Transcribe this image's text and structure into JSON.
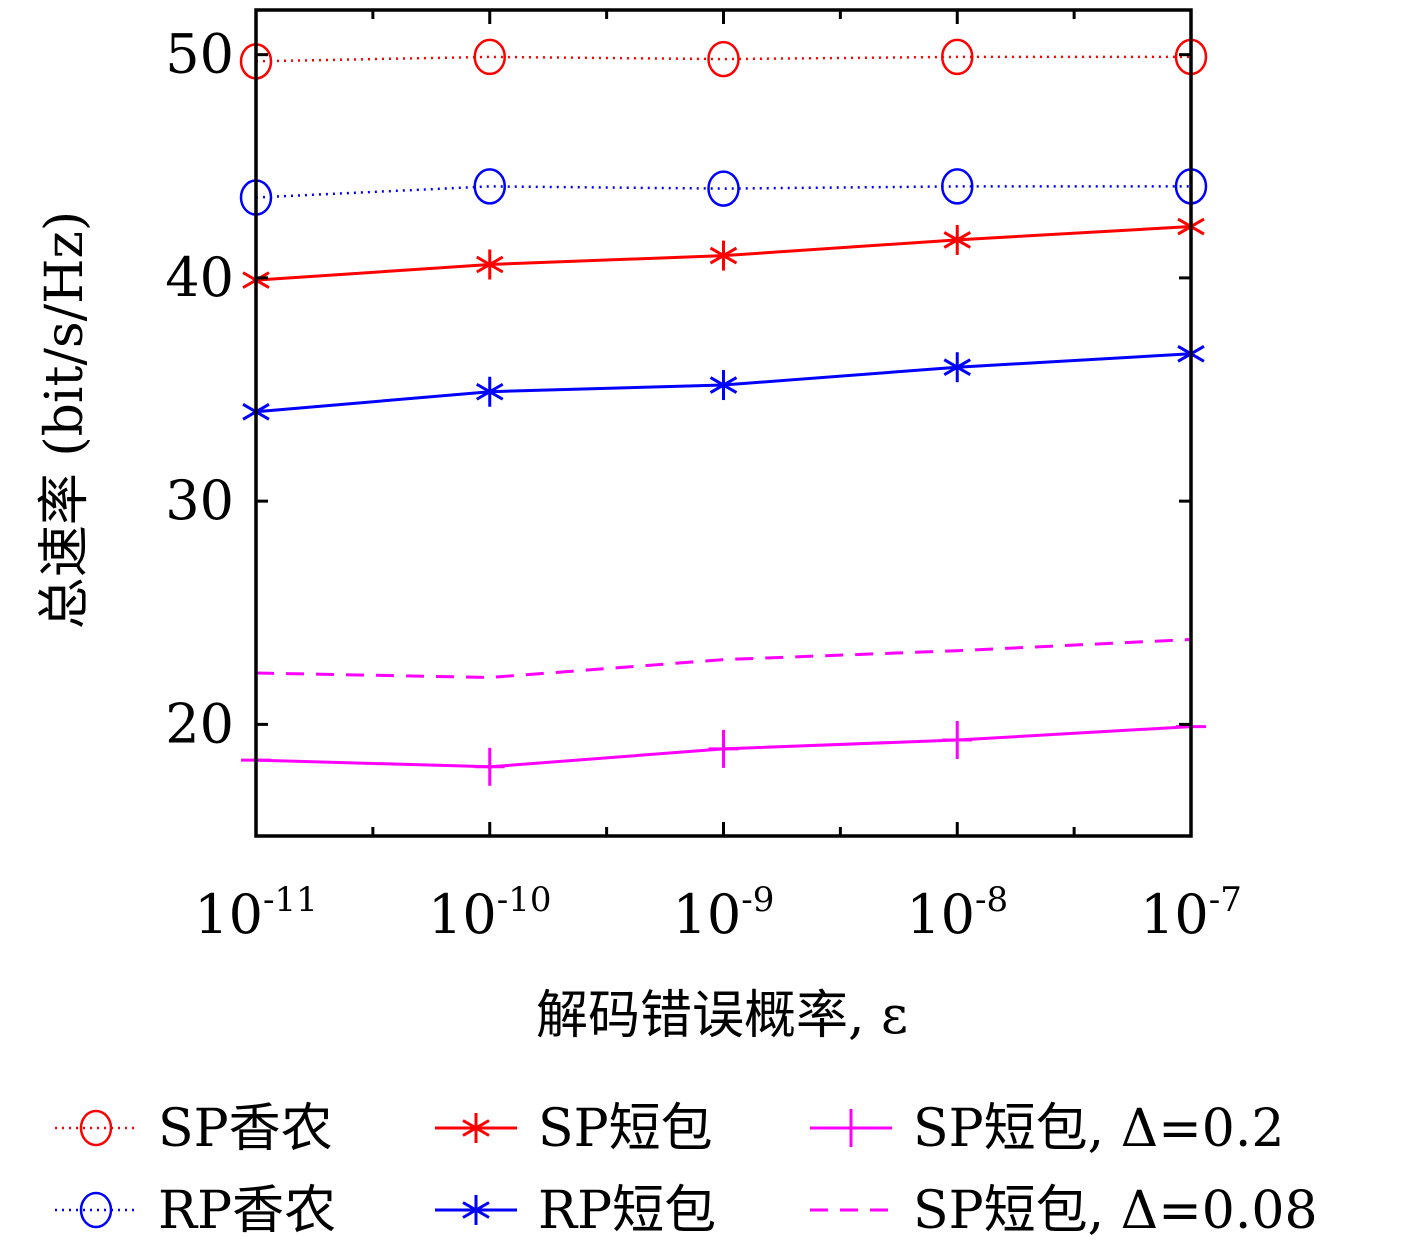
{
  "chart_data": {
    "type": "line",
    "title": "",
    "xlabel": "解码错误概率, ε",
    "ylabel": "总速率 (bit/s/Hz)",
    "x_scale": "log",
    "x": [
      1e-11,
      1e-10,
      1e-09,
      1e-08,
      1e-07
    ],
    "x_tick_labels": [
      {
        "base": "10",
        "exp": "-11"
      },
      {
        "base": "10",
        "exp": "-10"
      },
      {
        "base": "10",
        "exp": "-9"
      },
      {
        "base": "10",
        "exp": "-8"
      },
      {
        "base": "10",
        "exp": "-7"
      }
    ],
    "ylim": [
      15,
      52
    ],
    "y_ticks": [
      20,
      30,
      40,
      50
    ],
    "y_tick_labels": [
      "20",
      "30",
      "40",
      "50"
    ],
    "grid": false,
    "legend_position": "below",
    "series": [
      {
        "name": "SP香农",
        "color": "#ff0000",
        "line": "dotted",
        "marker": "circle",
        "values": [
          49.7,
          49.9,
          49.8,
          49.9,
          49.9
        ]
      },
      {
        "name": "RP香农",
        "color": "#0000ff",
        "line": "dotted",
        "marker": "circle",
        "values": [
          43.6,
          44.1,
          44.0,
          44.1,
          44.1
        ]
      },
      {
        "name": "SP短包",
        "color": "#ff0000",
        "line": "solid",
        "marker": "asterisk",
        "values": [
          39.9,
          40.6,
          41.0,
          41.7,
          42.3
        ]
      },
      {
        "name": "RP短包",
        "color": "#0000ff",
        "line": "solid",
        "marker": "asterisk",
        "values": [
          34.0,
          34.9,
          35.2,
          36.0,
          36.6
        ]
      },
      {
        "name": "SP短包, Δ=0.2",
        "color": "#ff00ff",
        "line": "solid",
        "marker": "plus",
        "values": [
          18.4,
          18.1,
          18.9,
          19.3,
          19.9
        ]
      },
      {
        "name": "SP短包, Δ=0.08",
        "color": "#ff00ff",
        "line": "dashed",
        "marker": "none",
        "values": [
          22.3,
          22.1,
          22.9,
          23.3,
          23.8
        ]
      }
    ]
  }
}
